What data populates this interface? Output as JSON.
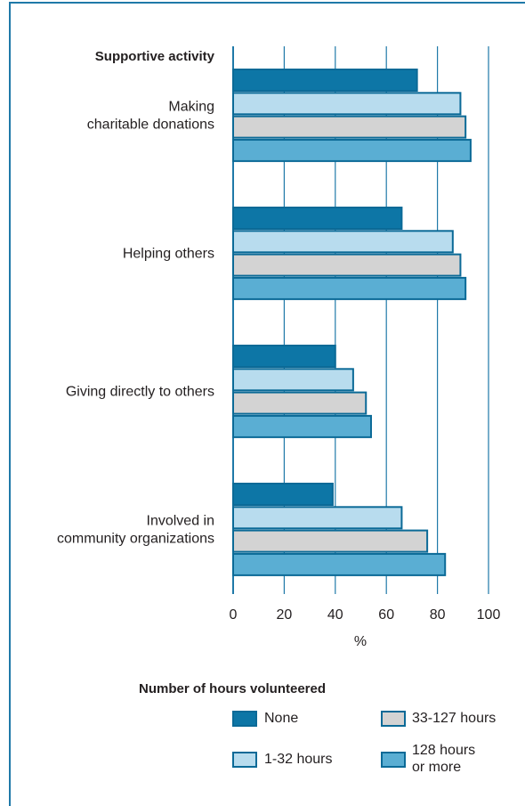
{
  "chart_data": {
    "type": "bar",
    "orientation": "horizontal",
    "category_axis_title": "Supportive activity",
    "categories": [
      [
        "Making",
        "charitable donations"
      ],
      [
        "Helping others"
      ],
      [
        "Giving directly to others"
      ],
      [
        "Involved in",
        "community organizations"
      ]
    ],
    "series": [
      {
        "name": "None",
        "values": [
          72,
          66,
          40,
          39
        ]
      },
      {
        "name": "1-32 hours",
        "values": [
          89,
          86,
          47,
          66
        ]
      },
      {
        "name": "33-127 hours",
        "values": [
          91,
          89,
          52,
          76
        ]
      },
      {
        "name": [
          "128 hours",
          "or more"
        ],
        "values": [
          93,
          91,
          54,
          83
        ]
      }
    ],
    "xlabel": "%",
    "xlim": [
      0,
      100
    ],
    "xticks": [
      0,
      20,
      40,
      60,
      80,
      100
    ],
    "grid": true,
    "legend_title": "Number of hours volunteered",
    "legend_placement": "bottom",
    "colors": {
      "frame": "#1f79a8",
      "series_fills": [
        "#0d76a6",
        "#b8dcee",
        "#d3d3d3",
        "#5aaed3"
      ],
      "bar_stroke": "#0b6a97",
      "gridline": "#1f79a8"
    }
  }
}
